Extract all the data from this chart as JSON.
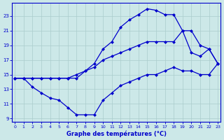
{
  "xlabel": "Graphe des températures (°C)",
  "bg_color": "#cce8e8",
  "line_color": "#0000cc",
  "grid_color": "#aacccc",
  "xlim": [
    -0.3,
    23.3
  ],
  "ylim": [
    8.5,
    24.8
  ],
  "x_ticks": [
    0,
    1,
    2,
    3,
    4,
    5,
    6,
    7,
    8,
    9,
    10,
    11,
    12,
    13,
    14,
    15,
    16,
    17,
    18,
    19,
    20,
    21,
    22,
    23
  ],
  "y_ticks": [
    9,
    11,
    13,
    15,
    17,
    19,
    21,
    23
  ],
  "curve_max": {
    "x": [
      0,
      1,
      2,
      3,
      4,
      5,
      6,
      7,
      8,
      9,
      10,
      11,
      12,
      13,
      14,
      15,
      16,
      17,
      18,
      19,
      20,
      21,
      22,
      23
    ],
    "y": [
      14.5,
      14.5,
      14.5,
      14.5,
      14.5,
      14.5,
      14.5,
      14.5,
      15.5,
      16.5,
      18.5,
      19.5,
      21.5,
      22.5,
      23.2,
      24.0,
      23.8,
      23.2,
      23.2,
      21.0,
      18.0,
      17.5,
      18.5,
      16.5
    ]
  },
  "curve_mid": {
    "x": [
      0,
      1,
      2,
      3,
      4,
      5,
      6,
      7,
      8,
      9,
      10,
      11,
      12,
      13,
      14,
      15,
      16,
      17,
      18,
      19,
      20,
      21,
      22,
      23
    ],
    "y": [
      14.5,
      14.5,
      14.5,
      14.5,
      14.5,
      14.5,
      14.5,
      15.0,
      15.5,
      16.0,
      17.0,
      17.5,
      18.0,
      18.5,
      19.0,
      19.5,
      19.5,
      19.5,
      19.5,
      21.0,
      21.0,
      19.0,
      18.5,
      16.5
    ]
  },
  "curve_min": {
    "x": [
      0,
      1,
      2,
      3,
      4,
      5,
      6,
      7,
      8,
      9,
      10,
      11,
      12,
      13,
      14,
      15,
      16,
      17,
      18,
      19,
      20,
      21,
      22,
      23
    ],
    "y": [
      14.5,
      14.5,
      13.3,
      12.5,
      11.8,
      11.5,
      10.5,
      9.5,
      9.5,
      9.5,
      11.5,
      12.5,
      13.5,
      14.0,
      14.5,
      15.0,
      15.0,
      15.5,
      16.0,
      15.5,
      15.5,
      15.0,
      15.0,
      16.5
    ]
  }
}
